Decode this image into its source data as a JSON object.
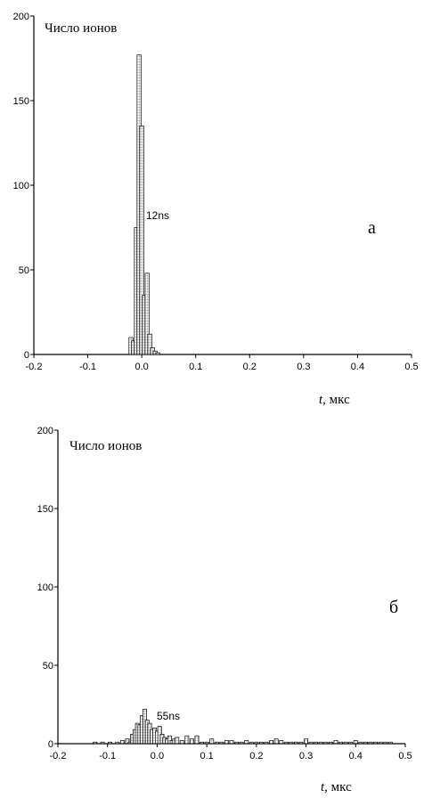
{
  "chart_data": [
    {
      "type": "bar",
      "panel_label": "а",
      "ylabel": "Число ионов",
      "xlabel_var": "t",
      "xlabel_unit": ",  мкс",
      "annotation": "12ns",
      "xlim": [
        -0.2,
        0.5
      ],
      "ylim": [
        0,
        200
      ],
      "xticks": [
        "-0.2",
        "-0.1",
        "0.0",
        "0.1",
        "0.2",
        "0.3",
        "0.4",
        "0.5"
      ],
      "yticks": [
        "0",
        "50",
        "100",
        "150",
        "200"
      ],
      "x": [
        -0.02,
        -0.015,
        -0.01,
        -0.005,
        0.0,
        0.005,
        0.01,
        0.015,
        0.02,
        0.025,
        0.03
      ],
      "values": [
        10,
        8,
        75,
        177,
        135,
        35,
        48,
        12,
        4,
        2,
        1
      ]
    },
    {
      "type": "bar",
      "panel_label": "б",
      "ylabel": "Число ионов",
      "xlabel_var": "t",
      "xlabel_unit": ",  мкс",
      "annotation": "55ns",
      "xlim": [
        -0.2,
        0.5
      ],
      "ylim": [
        0,
        200
      ],
      "xticks": [
        "-0.2",
        "-0.1",
        "0.0",
        "0.1",
        "0.2",
        "0.3",
        "0.4",
        "0.5"
      ],
      "yticks": [
        "0",
        "50",
        "100",
        "150",
        "200"
      ],
      "x": [
        -0.125,
        -0.11,
        -0.095,
        -0.08,
        -0.07,
        -0.06,
        -0.055,
        -0.05,
        -0.045,
        -0.04,
        -0.035,
        -0.03,
        -0.025,
        -0.02,
        -0.015,
        -0.01,
        -0.005,
        0.0,
        0.005,
        0.01,
        0.015,
        0.02,
        0.025,
        0.03,
        0.035,
        0.04,
        0.05,
        0.06,
        0.07,
        0.08,
        0.09,
        0.1,
        0.11,
        0.12,
        0.13,
        0.14,
        0.15,
        0.16,
        0.17,
        0.18,
        0.19,
        0.2,
        0.21,
        0.22,
        0.23,
        0.24,
        0.25,
        0.26,
        0.27,
        0.28,
        0.29,
        0.3,
        0.31,
        0.32,
        0.33,
        0.34,
        0.35,
        0.36,
        0.37,
        0.38,
        0.39,
        0.4,
        0.41,
        0.42,
        0.43,
        0.44,
        0.45,
        0.46,
        0.47
      ],
      "values": [
        1,
        1,
        1,
        1,
        2,
        3,
        1,
        6,
        9,
        13,
        12,
        18,
        22,
        15,
        13,
        9,
        10,
        8,
        11,
        6,
        4,
        3,
        5,
        2,
        3,
        4,
        2,
        5,
        3,
        5,
        1,
        1,
        3,
        1,
        1,
        2,
        2,
        1,
        1,
        2,
        1,
        1,
        1,
        1,
        2,
        3,
        2,
        1,
        1,
        1,
        1,
        3,
        1,
        1,
        1,
        1,
        1,
        2,
        1,
        1,
        1,
        2,
        1,
        1,
        1,
        1,
        1,
        1,
        1
      ]
    }
  ]
}
